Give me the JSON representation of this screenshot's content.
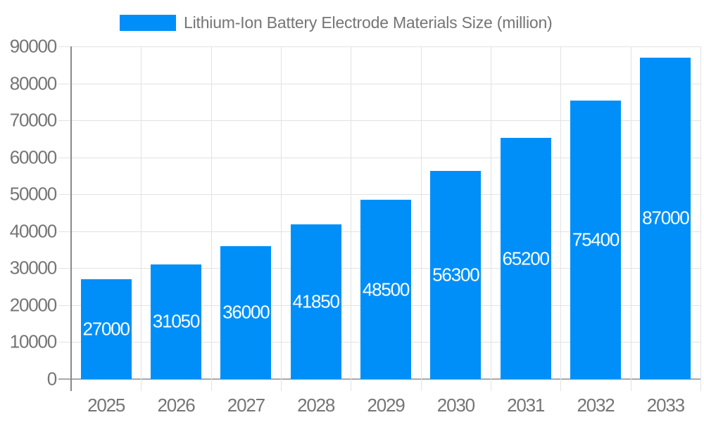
{
  "legend": {
    "label": "Lithium-Ion Battery Electrode Materials Size (million)"
  },
  "chart_data": {
    "type": "bar",
    "title": "Lithium-Ion Battery Electrode Materials Size (million)",
    "categories": [
      "2025",
      "2026",
      "2027",
      "2028",
      "2029",
      "2030",
      "2031",
      "2032",
      "2033"
    ],
    "values": [
      27000,
      31050,
      36000,
      41850,
      48500,
      56300,
      65200,
      75400,
      87000
    ],
    "bar_labels": [
      "27000",
      "31050",
      "36000",
      "41850",
      "48500",
      "56300",
      "65200",
      "75400",
      "87000"
    ],
    "xlabel": "",
    "ylabel": "",
    "ylim": [
      0,
      90000
    ],
    "ytick_step": 10000,
    "ytick_labels": [
      "0",
      "10000",
      "20000",
      "30000",
      "40000",
      "50000",
      "60000",
      "70000",
      "80000",
      "90000"
    ],
    "grid": true,
    "legend_position": "top",
    "colors": {
      "bar": "#008FF8",
      "bar_label": "#FFFFFF",
      "axis_text": "#757575",
      "title_text": "#757575",
      "gridline": "#E2E2E2",
      "y_axis_line": "#8A8A8A",
      "x_axis_line": "#A8A8A8",
      "background": "#FFFFFF"
    }
  }
}
